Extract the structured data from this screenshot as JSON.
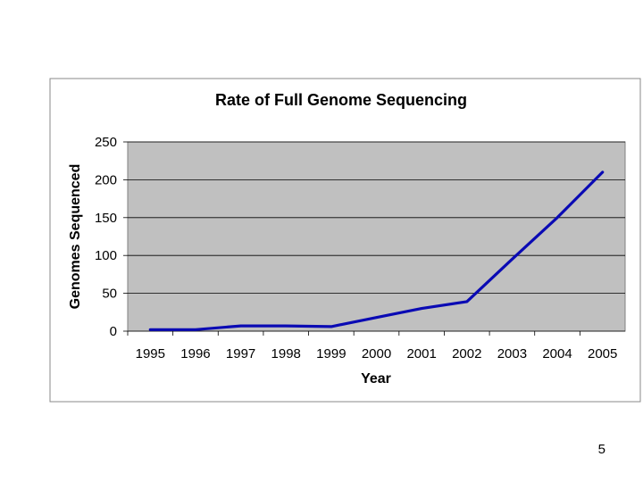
{
  "slide": {
    "page_number": "5"
  },
  "chart_data": {
    "type": "line",
    "title": "Rate of Full Genome Sequencing",
    "xlabel": "Year",
    "ylabel": "Genomes Sequenced",
    "categories": [
      "1995",
      "1996",
      "1997",
      "1998",
      "1999",
      "2000",
      "2001",
      "2002",
      "2003",
      "2004",
      "2005"
    ],
    "series": [
      {
        "values": [
          2,
          2,
          7,
          7,
          6,
          18,
          30,
          39,
          95,
          150,
          210
        ],
        "color": "#0a0ab4"
      }
    ],
    "ylim": [
      0,
      250
    ],
    "yticks": [
      0,
      50,
      100,
      150,
      200,
      250
    ],
    "grid": true,
    "legend": "none",
    "plot_background": "#c0c0c0",
    "gridline_color": "#000000"
  }
}
